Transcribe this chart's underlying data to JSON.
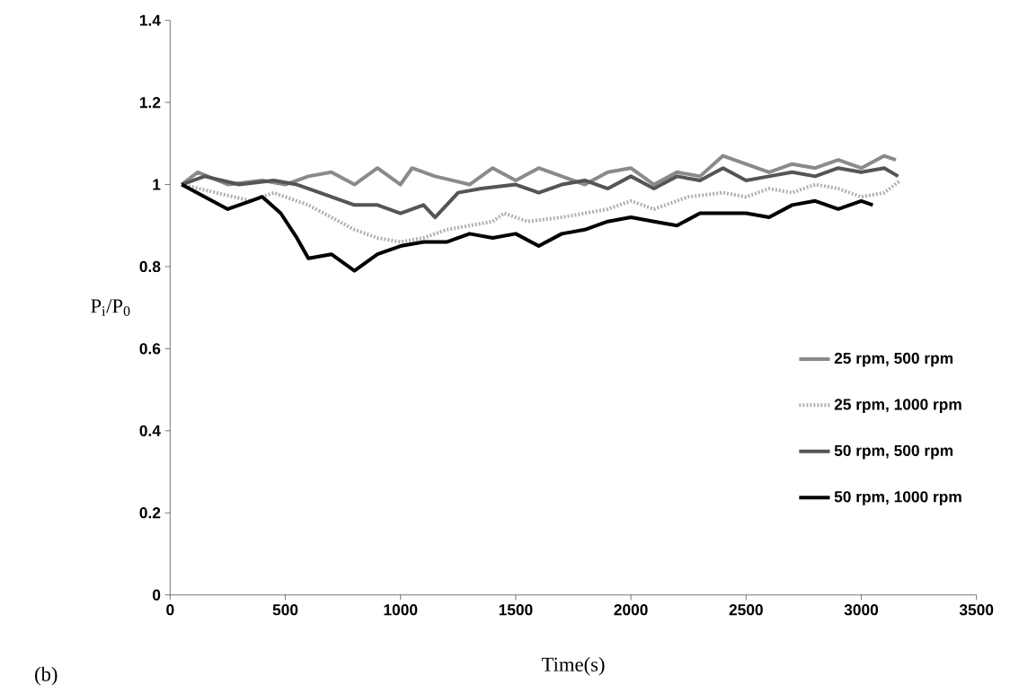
{
  "chart_data": {
    "type": "line",
    "xlabel": "Time(s)",
    "ylabel": "P$_{i}$/P$_{0}$",
    "xlim": [
      0,
      3500
    ],
    "ylim": [
      0,
      1.4
    ],
    "xticks": [
      0,
      500,
      1000,
      1500,
      2000,
      2500,
      3000,
      3500
    ],
    "yticks": [
      0,
      0.2,
      0.4,
      0.6,
      0.8,
      1,
      1.2,
      1.4
    ],
    "grid": false,
    "legend": "right",
    "marker": "none",
    "annotations": [
      "(b)"
    ],
    "series": [
      {
        "name": "25 rpm, 500 rpm",
        "color": "#8a8a8a",
        "line_style": "solid",
        "x": [
          50,
          120,
          250,
          400,
          500,
          600,
          700,
          800,
          900,
          1000,
          1050,
          1150,
          1300,
          1400,
          1500,
          1600,
          1700,
          1800,
          1900,
          2000,
          2100,
          2200,
          2300,
          2400,
          2500,
          2600,
          2700,
          2800,
          2900,
          3000,
          3100,
          3150
        ],
        "values": [
          1.0,
          1.03,
          1.0,
          1.01,
          1.0,
          1.02,
          1.03,
          1.0,
          1.04,
          1.0,
          1.04,
          1.02,
          1.0,
          1.04,
          1.01,
          1.04,
          1.02,
          1.0,
          1.03,
          1.04,
          1.0,
          1.03,
          1.02,
          1.07,
          1.05,
          1.03,
          1.05,
          1.04,
          1.06,
          1.04,
          1.07,
          1.06
        ]
      },
      {
        "name": "25 rpm, 1000 rpm",
        "color": "#b0b0b0",
        "line_style": "dotted",
        "x": [
          50,
          200,
          350,
          450,
          600,
          700,
          800,
          900,
          1000,
          1100,
          1200,
          1300,
          1400,
          1450,
          1550,
          1700,
          1900,
          2000,
          2100,
          2250,
          2400,
          2500,
          2600,
          2700,
          2800,
          2900,
          3000,
          3100,
          3170
        ],
        "values": [
          1.0,
          0.98,
          0.96,
          0.98,
          0.95,
          0.92,
          0.89,
          0.87,
          0.86,
          0.87,
          0.89,
          0.9,
          0.91,
          0.93,
          0.91,
          0.92,
          0.94,
          0.96,
          0.94,
          0.97,
          0.98,
          0.97,
          0.99,
          0.98,
          1.0,
          0.99,
          0.97,
          0.98,
          1.01
        ]
      },
      {
        "name": "50 rpm, 500 rpm",
        "color": "#555555",
        "line_style": "solid",
        "x": [
          50,
          150,
          300,
          450,
          550,
          650,
          800,
          900,
          1000,
          1100,
          1150,
          1250,
          1350,
          1500,
          1600,
          1700,
          1800,
          1900,
          2000,
          2100,
          2200,
          2300,
          2400,
          2500,
          2600,
          2700,
          2800,
          2900,
          3000,
          3100,
          3160
        ],
        "values": [
          1.0,
          1.02,
          1.0,
          1.01,
          1.0,
          0.98,
          0.95,
          0.95,
          0.93,
          0.95,
          0.92,
          0.98,
          0.99,
          1.0,
          0.98,
          1.0,
          1.01,
          0.99,
          1.02,
          0.99,
          1.02,
          1.01,
          1.04,
          1.01,
          1.02,
          1.03,
          1.02,
          1.04,
          1.03,
          1.04,
          1.02
        ]
      },
      {
        "name": "50 rpm, 1000 rpm",
        "color": "#000000",
        "line_style": "solid",
        "x": [
          50,
          150,
          250,
          350,
          400,
          480,
          550,
          600,
          700,
          800,
          900,
          1000,
          1100,
          1200,
          1300,
          1400,
          1500,
          1600,
          1700,
          1800,
          1900,
          2000,
          2100,
          2200,
          2300,
          2500,
          2600,
          2700,
          2800,
          2900,
          3000,
          3050
        ],
        "values": [
          1.0,
          0.97,
          0.94,
          0.96,
          0.97,
          0.93,
          0.87,
          0.82,
          0.83,
          0.79,
          0.83,
          0.85,
          0.86,
          0.86,
          0.88,
          0.87,
          0.88,
          0.85,
          0.88,
          0.89,
          0.91,
          0.92,
          0.91,
          0.9,
          0.93,
          0.93,
          0.92,
          0.95,
          0.96,
          0.94,
          0.96,
          0.95
        ]
      }
    ]
  }
}
